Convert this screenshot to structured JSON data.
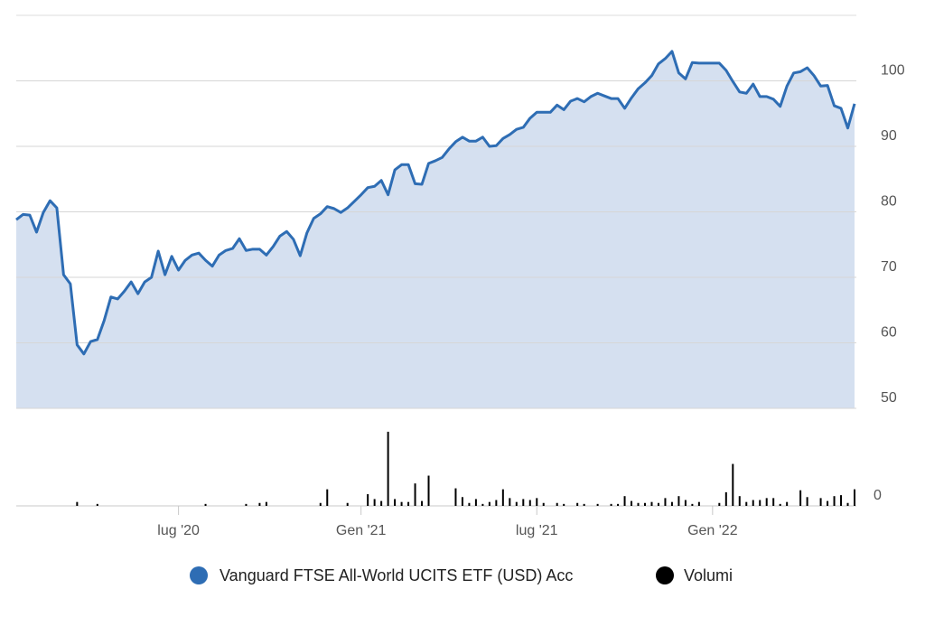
{
  "chart_data": {
    "type": "area",
    "categories": [
      null,
      null,
      null,
      null,
      null,
      null,
      null,
      null,
      null,
      null,
      null,
      null,
      null,
      null,
      null,
      null,
      null,
      null,
      null,
      null,
      null,
      null,
      null,
      null,
      "lug '20",
      null,
      null,
      null,
      null,
      null,
      null,
      null,
      null,
      null,
      null,
      null,
      null,
      null,
      null,
      null,
      null,
      null,
      null,
      null,
      null,
      null,
      null,
      null,
      null,
      null,
      null,
      "Gen '21",
      null,
      null,
      null,
      null,
      null,
      null,
      null,
      null,
      null,
      null,
      null,
      null,
      null,
      null,
      null,
      null,
      null,
      null,
      null,
      null,
      null,
      null,
      null,
      null,
      null,
      "lug '21",
      null,
      null,
      null,
      null,
      null,
      null,
      null,
      null,
      null,
      null,
      null,
      null,
      null,
      null,
      null,
      null,
      null,
      null,
      null,
      null,
      null,
      null,
      null,
      null,
      null,
      "Gen '22",
      null,
      null,
      null,
      null,
      null,
      null,
      null,
      null,
      null,
      null,
      null,
      null,
      null,
      null,
      null,
      null,
      null,
      null,
      null,
      null,
      null
    ],
    "series": [
      {
        "name": "Vanguard FTSE All-World UCITS ETF (USD) Acc",
        "color": "#2e6db4",
        "fill": "#d5e0f0",
        "values": [
          78.8,
          79.6,
          79.5,
          76.9,
          79.9,
          81.7,
          80.6,
          70.4,
          69,
          59.7,
          58.3,
          60.2,
          60.5,
          63.4,
          67,
          66.7,
          67.9,
          69.3,
          67.5,
          69.3,
          70,
          74,
          70.4,
          73.2,
          71.1,
          72.6,
          73.4,
          73.7,
          72.6,
          71.7,
          73.4,
          74.1,
          74.4,
          75.9,
          74.1,
          74.3,
          74.3,
          73.4,
          74.7,
          76.3,
          77,
          75.8,
          73.3,
          76.8,
          79,
          79.7,
          80.8,
          80.5,
          79.9,
          80.6,
          81.6,
          82.6,
          83.7,
          83.9,
          84.8,
          82.6,
          86.4,
          87.2,
          87.2,
          84.3,
          84.2,
          87.4,
          87.8,
          88.3,
          89.6,
          90.7,
          91.4,
          90.8,
          90.8,
          91.4,
          90,
          90.1,
          91.2,
          91.8,
          92.6,
          92.9,
          94.3,
          95.2,
          95.2,
          95.2,
          96.3,
          95.6,
          96.9,
          97.3,
          96.8,
          97.6,
          98.1,
          97.7,
          97.3,
          97.3,
          95.8,
          97.4,
          98.8,
          99.7,
          100.8,
          102.6,
          103.4,
          104.5,
          101.2,
          100.3,
          102.8,
          102.7,
          102.7,
          102.7,
          102.7,
          101.6,
          99.9,
          98.3,
          98.1,
          99.5,
          97.6,
          97.6,
          97.2,
          96.1,
          99.2,
          101.2,
          101.4,
          102,
          100.8,
          99.2,
          99.3,
          96.2,
          95.8,
          92.8,
          96.5
        ]
      },
      {
        "name": "Volumi",
        "color": "#000000",
        "type": "bar",
        "axis": "y2",
        "values": [
          0,
          0,
          0,
          0,
          0,
          0,
          0,
          0,
          0,
          4,
          0,
          0,
          2,
          0,
          0,
          0,
          0,
          0,
          0,
          0,
          0,
          0,
          0,
          0,
          0,
          0,
          0,
          0,
          2,
          0,
          0,
          0,
          0,
          0,
          2,
          0,
          3,
          4,
          0,
          0,
          0,
          0,
          0,
          0,
          0,
          3,
          17,
          0,
          0,
          3,
          0,
          0,
          12,
          7,
          5,
          76,
          7,
          4,
          4,
          23,
          5,
          31,
          0,
          0,
          0,
          18,
          9,
          3,
          7,
          2,
          4,
          6,
          17,
          8,
          4,
          7,
          6,
          8,
          3,
          0,
          3,
          2,
          0,
          3,
          2,
          0,
          2,
          0,
          2,
          2,
          10,
          5,
          3,
          3,
          4,
          3,
          8,
          4,
          10,
          6,
          2,
          4,
          0,
          0,
          3,
          14,
          43,
          10,
          4,
          6,
          6,
          8,
          8,
          2,
          4,
          0,
          16,
          9,
          0,
          8,
          5,
          10,
          11,
          3,
          17
        ]
      }
    ],
    "ylim": [
      50,
      110
    ],
    "yticks": [
      50,
      60,
      70,
      80,
      90,
      100
    ],
    "y2lim": [
      0,
      100
    ],
    "y2ticks": [
      0
    ],
    "grid": true,
    "legend": "bottom"
  }
}
